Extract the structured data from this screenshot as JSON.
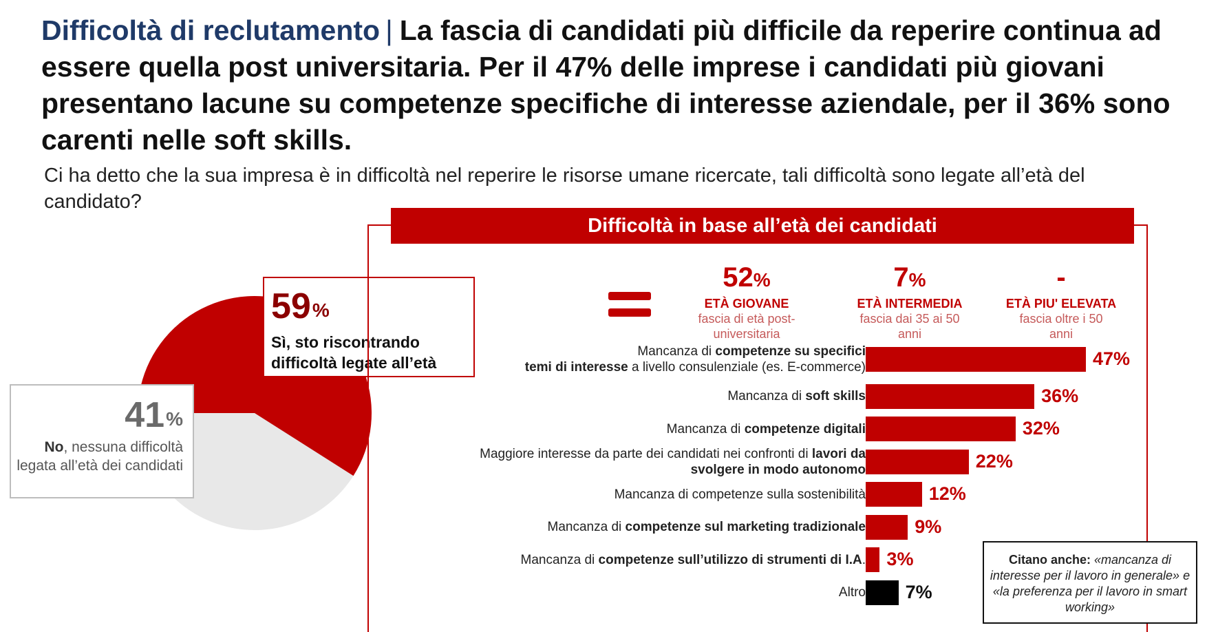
{
  "title": {
    "lead": "Difficoltà di reclutamento",
    "separator": "|",
    "rest": "La fascia di candidati più difficile da reperire continua ad essere quella post universitaria. Per il 47% delle imprese i candidati più giovani presentano lacune su competenze specifiche di interesse aziendale, per il 36% sono carenti nelle soft skills."
  },
  "question": "Ci ha detto che la sua impresa è in difficoltà nel reperire le risorse umane ricercate, tali difficoltà sono legate all’età del candidato?",
  "pie": {
    "yes": {
      "value": "59",
      "unit": "%",
      "label": "Sì, sto riscontrando difficoltà legate all’età",
      "color": "#c00000"
    },
    "no": {
      "value": "41",
      "unit": "%",
      "label_bold": "No",
      "label_rest": ", nessuna difficoltà legata all’età dei candidati",
      "color": "#e6e6e6"
    }
  },
  "panel": {
    "banner": "Difficoltà in base all’età dei candidati",
    "age_groups": [
      {
        "pct": "52",
        "unit": "%",
        "name": "ETÀ GIOVANE",
        "sub": "fascia di età post-universitaria"
      },
      {
        "pct": "7",
        "unit": "%",
        "name": "ETÀ INTERMEDIA",
        "sub": "fascia dai 35 ai 50 anni"
      },
      {
        "pct": "-",
        "unit": "",
        "name": "ETÀ PIU' ELEVATA",
        "sub": "fascia oltre i 50 anni"
      }
    ]
  },
  "chart_data": [
    {
      "type": "pie",
      "categories": [
        "Sì, sto riscontrando difficoltà legate all’età",
        "No, nessuna difficoltà legata all’età dei candidati"
      ],
      "values": [
        59,
        41
      ],
      "unit": "%"
    },
    {
      "type": "bar",
      "orientation": "horizontal",
      "title": "Difficoltà in base all’età dei candidati",
      "unit": "%",
      "categories": [
        "Mancanza di competenze su specifici temi di interesse a livello consulenziale (es. E-commerce)",
        "Mancanza di soft skills",
        "Mancanza di competenze digitali",
        "Maggiore interesse da parte dei candidati nei confronti di lavori da svolgere in modo autonomo",
        "Mancanza di competenze sulla sostenibilità",
        "Mancanza di competenze sul marketing tradizionale",
        "Mancanza di competenze sull’utilizzo di strumenti di I.A.",
        "Altro"
      ],
      "values": [
        47,
        36,
        32,
        22,
        12,
        9,
        3,
        7
      ],
      "value_labels": [
        "47%",
        "36%",
        "32%",
        "22%",
        "12%",
        "9%",
        "3%",
        "7%"
      ],
      "colors": [
        "#c00000",
        "#c00000",
        "#c00000",
        "#c00000",
        "#c00000",
        "#c00000",
        "#c00000",
        "#000000"
      ],
      "label_parts": [
        [
          [
            "Mancanza di ",
            false
          ],
          [
            "competenze su specifici",
            true
          ],
          [
            "\n",
            false
          ],
          [
            "temi di interesse",
            true
          ],
          [
            " a livello consulenziale (es. E-commerce)",
            false
          ]
        ],
        [
          [
            "Mancanza di ",
            false
          ],
          [
            "soft skills",
            true
          ]
        ],
        [
          [
            "Mancanza di ",
            false
          ],
          [
            "competenze digitali",
            true
          ]
        ],
        [
          [
            "Maggiore interesse da parte dei candidati nei confronti di ",
            false
          ],
          [
            "lavori da",
            true
          ],
          [
            "\n",
            false
          ],
          [
            "svolgere in modo autonomo",
            true
          ]
        ],
        [
          [
            "Mancanza di competenze sulla sostenibilità",
            false
          ]
        ],
        [
          [
            "Mancanza di ",
            false
          ],
          [
            "competenze sul marketing tradizionale",
            true
          ]
        ],
        [
          [
            "Mancanza di ",
            false
          ],
          [
            "competenze sull’utilizzo di strumenti di I.A",
            true
          ],
          [
            ".",
            false
          ]
        ],
        [
          [
            "Altro",
            false
          ]
        ]
      ]
    }
  ],
  "note": {
    "bold": "Citano anche:",
    "italic": " «mancanza di interesse per il lavoro in generale» e «la preferenza per il lavoro in smart working»"
  }
}
